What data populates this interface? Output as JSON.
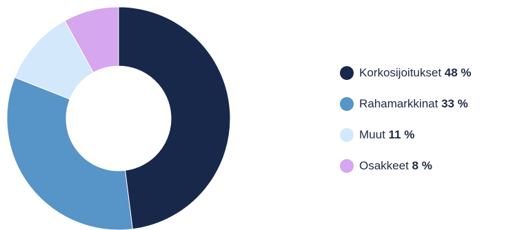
{
  "chart_data": {
    "type": "pie",
    "variant": "donut",
    "categories": [
      "Korkosijoitukset",
      "Rahamarkkinat",
      "Muut",
      "Osakkeet"
    ],
    "values": [
      48,
      33,
      11,
      8
    ],
    "value_labels": [
      "48 %",
      "33 %",
      "11 %",
      "8 %"
    ],
    "colors": [
      "#17284b",
      "#5794c7",
      "#d3e8fb",
      "#d6a6ee"
    ],
    "legend": "right"
  }
}
